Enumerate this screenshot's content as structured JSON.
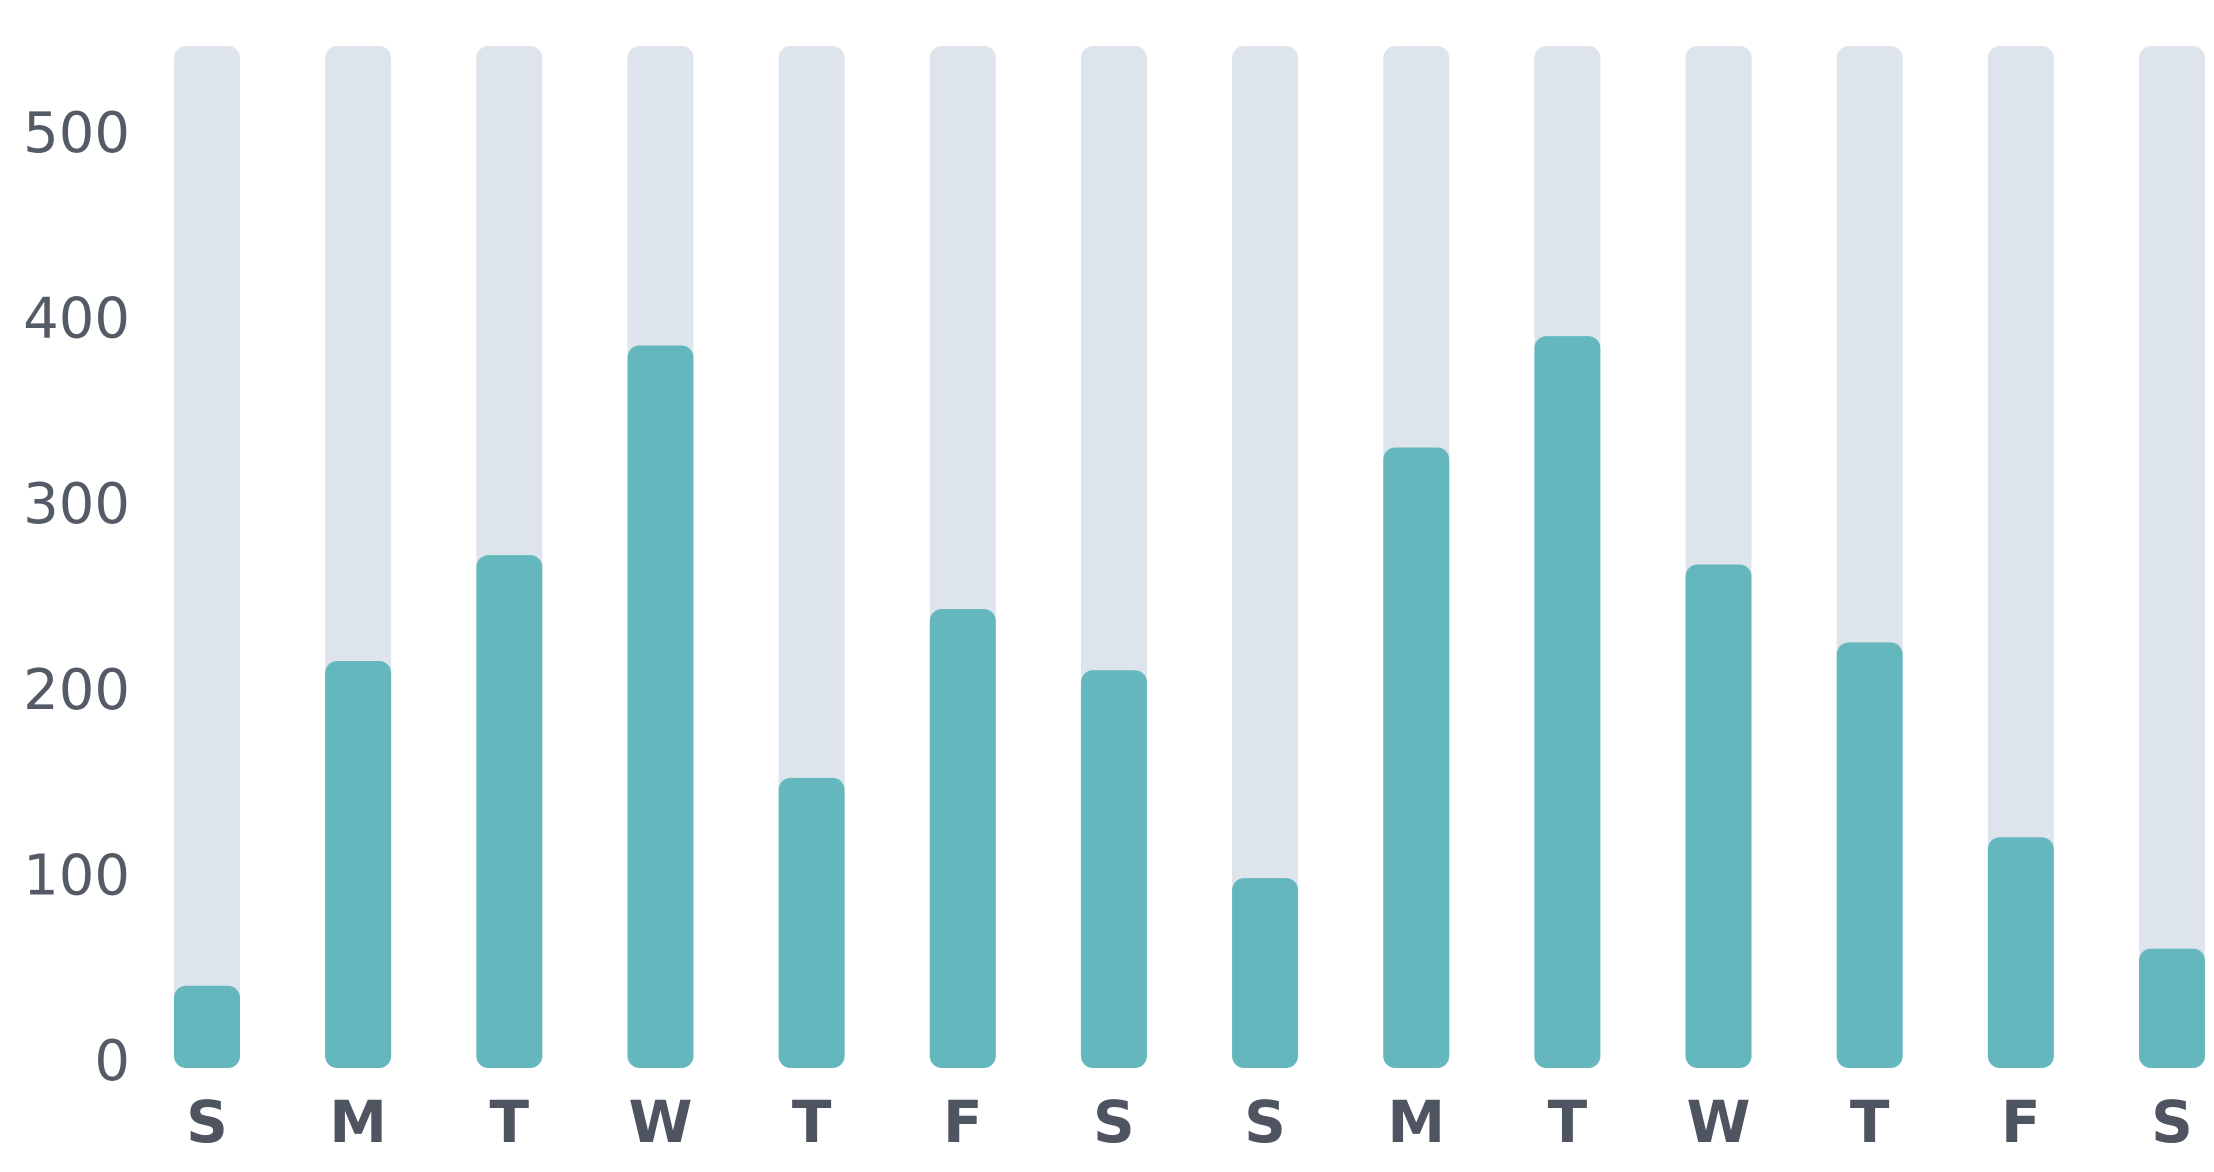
{
  "chart_data": {
    "type": "bar",
    "categories": [
      "S",
      "M",
      "T",
      "W",
      "T",
      "F",
      "S",
      "S",
      "M",
      "T",
      "W",
      "T",
      "F",
      "S"
    ],
    "values": [
      40,
      215,
      272,
      385,
      152,
      243,
      210,
      98,
      330,
      390,
      267,
      225,
      120,
      60
    ],
    "ylim": [
      0,
      550
    ],
    "yticks": [
      0,
      100,
      200,
      300,
      400,
      500
    ],
    "ytick_labels": [
      "0",
      "100",
      "200",
      "300",
      "400",
      "500"
    ],
    "background_bars": true,
    "grid": false,
    "legend": "none",
    "colors": {
      "bar": "#64b8bd",
      "track": "#dde4eb",
      "tick_text": "#555b66",
      "category_text": "#4f5461"
    }
  }
}
